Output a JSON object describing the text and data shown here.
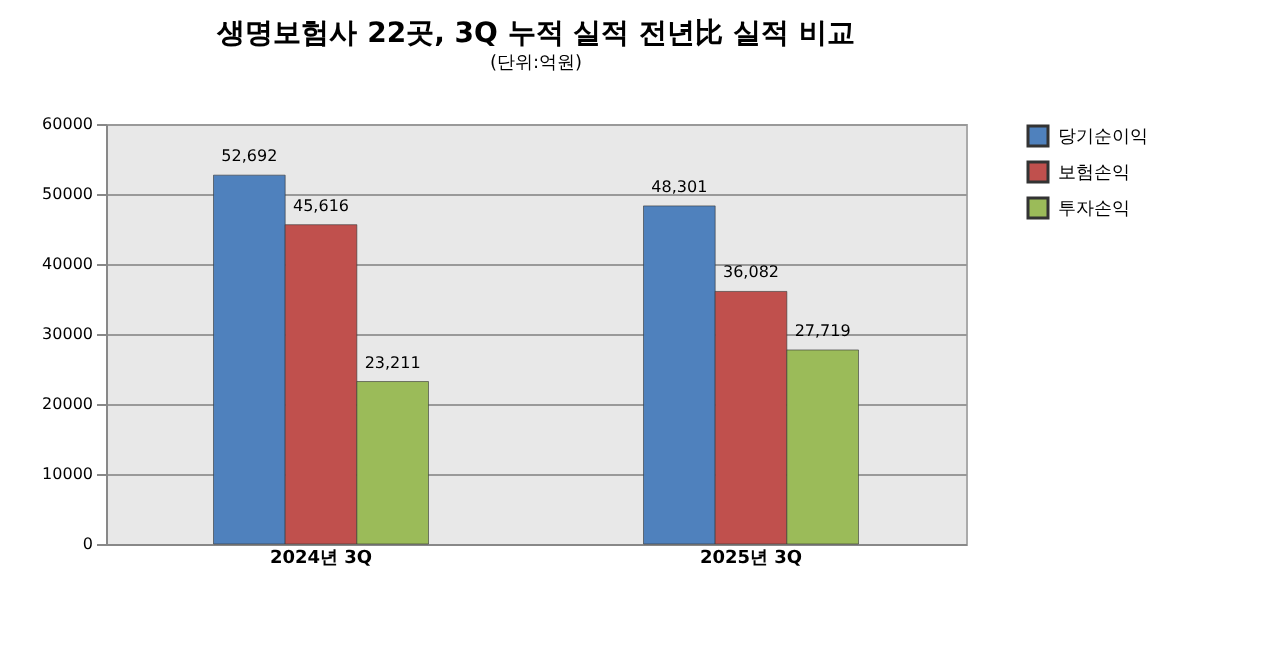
{
  "chart_data": {
    "type": "bar",
    "title": "생명보험사 22곳, 3Q 누적 실적 전년比 실적 비교",
    "subtitle": "(단위:억원)",
    "categories": [
      "2024년 3Q",
      "2025년 3Q"
    ],
    "series": [
      {
        "name": "당기순이익",
        "color": "#4f81bd",
        "values": [
          52692,
          48301
        ]
      },
      {
        "name": "보험손익",
        "color": "#c0504d",
        "values": [
          45616,
          36082
        ]
      },
      {
        "name": "투자손익",
        "color": "#9bbb59",
        "values": [
          23211,
          27719
        ]
      }
    ],
    "value_labels": [
      [
        "52,692",
        "48,301"
      ],
      [
        "45,616",
        "36,082"
      ],
      [
        "23,211",
        "27,719"
      ]
    ],
    "ylim": [
      0,
      60000
    ],
    "yticks": [
      0,
      10000,
      20000,
      30000,
      40000,
      50000,
      60000
    ],
    "grid": "y",
    "legend": "right"
  }
}
